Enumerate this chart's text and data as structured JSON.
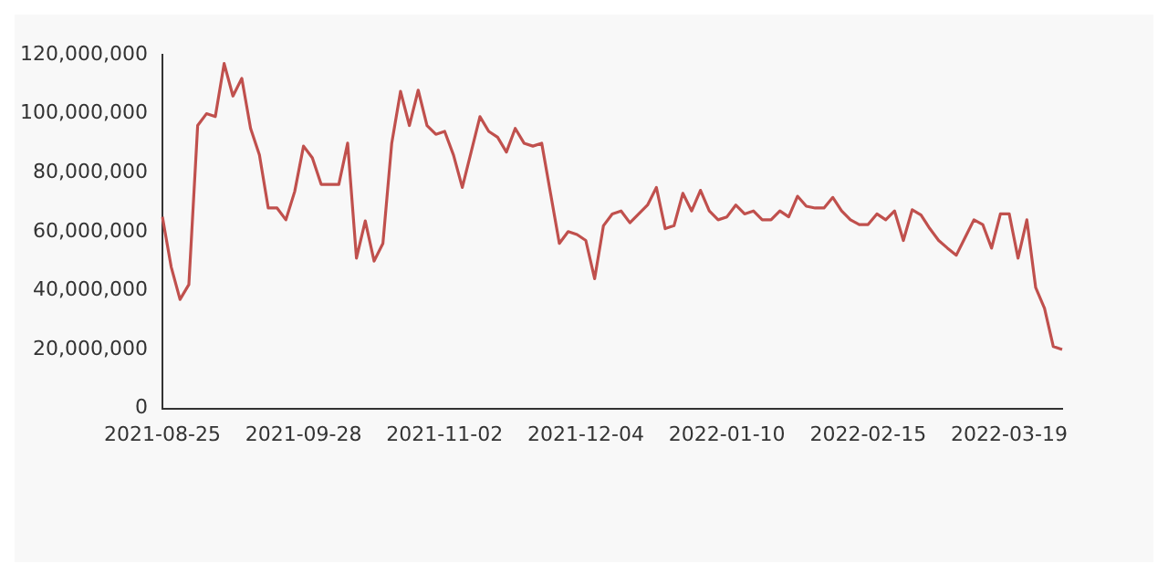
{
  "chart_data": {
    "type": "line",
    "categories": [
      "2021-08-25",
      null,
      null,
      null,
      null,
      null,
      null,
      null,
      null,
      null,
      null,
      null,
      null,
      null,
      null,
      null,
      "2021-09-28",
      null,
      null,
      null,
      null,
      null,
      null,
      null,
      null,
      null,
      null,
      null,
      null,
      null,
      null,
      null,
      "2021-11-02",
      null,
      null,
      null,
      null,
      null,
      null,
      null,
      null,
      null,
      null,
      null,
      null,
      null,
      null,
      null,
      "2021-12-04",
      null,
      null,
      null,
      null,
      null,
      null,
      null,
      null,
      null,
      null,
      null,
      null,
      null,
      null,
      null,
      "2022-01-10",
      null,
      null,
      null,
      null,
      null,
      null,
      null,
      null,
      null,
      null,
      null,
      null,
      null,
      null,
      null,
      "2022-02-15",
      null,
      null,
      null,
      null,
      null,
      null,
      null,
      null,
      null,
      null,
      null,
      null,
      null,
      null,
      null,
      "2022-03-19",
      null,
      null,
      null,
      null,
      null,
      null
    ],
    "series": [
      {
        "color": "#c0504d",
        "values": [
          65000000,
          48000000,
          37000000,
          42000000,
          96000000,
          100000000,
          99000000,
          117000000,
          106000000,
          112000000,
          95000000,
          86000000,
          68000000,
          68000000,
          64000000,
          73600000,
          89000000,
          85000000,
          76000000,
          76000000,
          76000000,
          90000000,
          51000000,
          63600000,
          50000000,
          56000000,
          90000000,
          107600000,
          96000000,
          108000000,
          96000000,
          93000000,
          94000000,
          86000000,
          75000000,
          87000000,
          99000000,
          94000000,
          92000000,
          87000000,
          95000000,
          90000000,
          89000000,
          90000000,
          73000000,
          56000000,
          60000000,
          59000000,
          57000000,
          44000000,
          62000000,
          66000000,
          67000000,
          63000000,
          66000000,
          69000000,
          75000000,
          61000000,
          62000000,
          73000000,
          67000000,
          74000000,
          67000000,
          64000000,
          65000000,
          69000000,
          66000000,
          67000000,
          64000000,
          64000000,
          67000000,
          65000000,
          72000000,
          68600000,
          68000000,
          68000000,
          71600000,
          67000000,
          64000000,
          62400000,
          62400000,
          66000000,
          64000000,
          67000000,
          57000000,
          67400000,
          65600000,
          61000000,
          57000000,
          54400000,
          52000000,
          58000000,
          64000000,
          62400000,
          54400000,
          66000000,
          66000000,
          51000000,
          64000000,
          41000000,
          34000000,
          21000000,
          20000000
        ]
      }
    ],
    "ylim": [
      0,
      120000000
    ],
    "yticks": [
      {
        "value": 0,
        "label": "0"
      },
      {
        "value": 20000000,
        "label": "20,000,000"
      },
      {
        "value": 40000000,
        "label": "40,000,000"
      },
      {
        "value": 60000000,
        "label": "60,000,000"
      },
      {
        "value": 80000000,
        "label": "80,000,000"
      },
      {
        "value": 100000000,
        "label": "100,000,000"
      },
      {
        "value": 120000000,
        "label": "120,000,000"
      }
    ],
    "grid": false,
    "legend": false,
    "marker": "none",
    "line_style": "solid"
  }
}
